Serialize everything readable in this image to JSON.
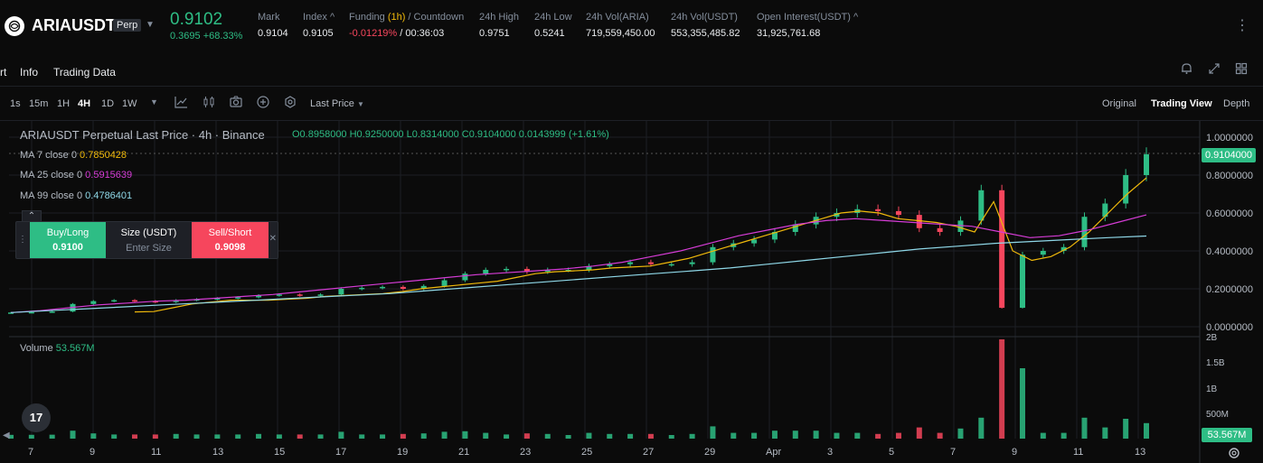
{
  "header": {
    "symbol": "ARIAUSDT",
    "badge": "Perp",
    "last_price": "0.9102",
    "change": "0.3695 +68.33%",
    "stats": [
      {
        "label": "Mark",
        "value": "0.9104"
      },
      {
        "label": "Index ^",
        "value": "0.9105"
      },
      {
        "label_pre": "Funding ",
        "label_link": "(1h)",
        "label_post": " / Countdown",
        "value_neg": "-0.01219%",
        "value_post": " / 00:36:03"
      },
      {
        "label": "24h High",
        "value": "0.9751"
      },
      {
        "label": "24h Low",
        "value": "0.5241"
      },
      {
        "label": "24h Vol(ARIA)",
        "value": "719,559,450.00"
      },
      {
        "label": "24h Vol(USDT)",
        "value": "553,355,485.82"
      },
      {
        "label": "Open Interest(USDT) ^",
        "value": "31,925,761.68"
      }
    ]
  },
  "tabs": {
    "chart": "rt",
    "info": "Info",
    "trading_data": "Trading Data"
  },
  "toolbar": {
    "intervals": [
      "1s",
      "15m",
      "1H",
      "4H",
      "1D",
      "1W"
    ],
    "active_interval": "4H",
    "price_type": "Last Price",
    "views": [
      "Original",
      "Trading View",
      "Depth"
    ],
    "active_view": "Trading View"
  },
  "legend": {
    "title": "ARIAUSDT Perpetual Last Price · 4h · Binance",
    "ohlc": "O0.8958000  H0.9250000  L0.8314000  C0.9104000  0.0143999  (+1.61%)",
    "ma7_label": "MA 7 close 0",
    "ma7_value": "0.7850428",
    "ma25_label": "MA 25 close 0",
    "ma25_value": "0.5915639",
    "ma99_label": "MA 99 close 0",
    "ma99_value": "0.4786401",
    "volume_label": "Volume",
    "volume_value": "53.567M"
  },
  "trade": {
    "buy_label": "Buy/Long",
    "buy_price": "0.9100",
    "size_label": "Size (USDT)",
    "size_placeholder": "Enter Size",
    "sell_label": "Sell/Short",
    "sell_price": "0.9098"
  },
  "price_tag": "0.9104000",
  "volume_tag": "53.567M",
  "tv_logo": "17",
  "colors": {
    "up": "#2ebd85",
    "down": "#f6465d",
    "ma7": "#f0b90b",
    "ma25": "#d63cd6",
    "ma99": "#8fd8e8"
  },
  "chart_data": {
    "type": "candlestick",
    "title": "ARIAUSDT Perpetual Last Price · 4h · Binance",
    "y_ticks": [
      "1.0000000",
      "0.8000000",
      "0.6000000",
      "0.4000000",
      "0.2000000",
      "0.0000000"
    ],
    "ylim": [
      0,
      1.0
    ],
    "volume_ticks": [
      "2B",
      "1.5B",
      "1B",
      "500M"
    ],
    "x_ticks": [
      "7",
      "9",
      "11",
      "13",
      "15",
      "17",
      "19",
      "21",
      "23",
      "25",
      "27",
      "29",
      "Apr",
      "3",
      "5",
      "7",
      "9",
      "11",
      "13"
    ],
    "series": [
      {
        "name": "Price",
        "values": [
          0.075,
          0.077,
          0.08,
          0.12,
          0.135,
          0.14,
          0.135,
          0.13,
          0.14,
          0.145,
          0.15,
          0.155,
          0.165,
          0.17,
          0.165,
          0.17,
          0.2,
          0.205,
          0.21,
          0.2,
          0.215,
          0.245,
          0.28,
          0.3,
          0.305,
          0.29,
          0.3,
          0.3,
          0.32,
          0.33,
          0.34,
          0.33,
          0.33,
          0.34,
          0.42,
          0.44,
          0.46,
          0.5,
          0.54,
          0.58,
          0.6,
          0.62,
          0.61,
          0.59,
          0.52,
          0.5,
          0.56,
          0.72,
          0.1,
          0.38,
          0.4,
          0.42,
          0.58,
          0.65,
          0.8,
          0.91
        ]
      },
      {
        "name": "MA 7",
        "values": [
          0.078,
          0.08,
          0.1,
          0.12,
          0.13,
          0.14,
          0.14,
          0.14,
          0.145,
          0.15,
          0.16,
          0.165,
          0.17,
          0.175,
          0.185,
          0.2,
          0.21,
          0.22,
          0.23,
          0.24,
          0.26,
          0.28,
          0.29,
          0.295,
          0.3,
          0.31,
          0.315,
          0.32,
          0.34,
          0.36,
          0.39,
          0.42,
          0.45,
          0.48,
          0.51,
          0.54,
          0.57,
          0.6,
          0.61,
          0.6,
          0.57,
          0.56,
          0.55,
          0.53,
          0.5,
          0.66,
          0.4,
          0.35,
          0.37,
          0.42,
          0.5,
          0.6,
          0.7,
          0.785
        ]
      },
      {
        "name": "MA 25",
        "values": [
          0.075,
          0.085,
          0.1,
          0.115,
          0.125,
          0.135,
          0.14,
          0.15,
          0.16,
          0.17,
          0.185,
          0.2,
          0.215,
          0.23,
          0.245,
          0.26,
          0.275,
          0.285,
          0.295,
          0.305,
          0.32,
          0.34,
          0.37,
          0.4,
          0.44,
          0.48,
          0.51,
          0.54,
          0.56,
          0.57,
          0.56,
          0.55,
          0.54,
          0.53,
          0.5,
          0.47,
          0.48,
          0.51,
          0.55,
          0.59
        ]
      },
      {
        "name": "MA 99",
        "values": [
          0.075,
          0.085,
          0.095,
          0.105,
          0.115,
          0.125,
          0.135,
          0.145,
          0.155,
          0.165,
          0.175,
          0.19,
          0.205,
          0.22,
          0.235,
          0.25,
          0.265,
          0.28,
          0.295,
          0.31,
          0.33,
          0.35,
          0.37,
          0.39,
          0.41,
          0.425,
          0.44,
          0.45,
          0.46,
          0.47,
          0.4786
        ]
      }
    ]
  }
}
